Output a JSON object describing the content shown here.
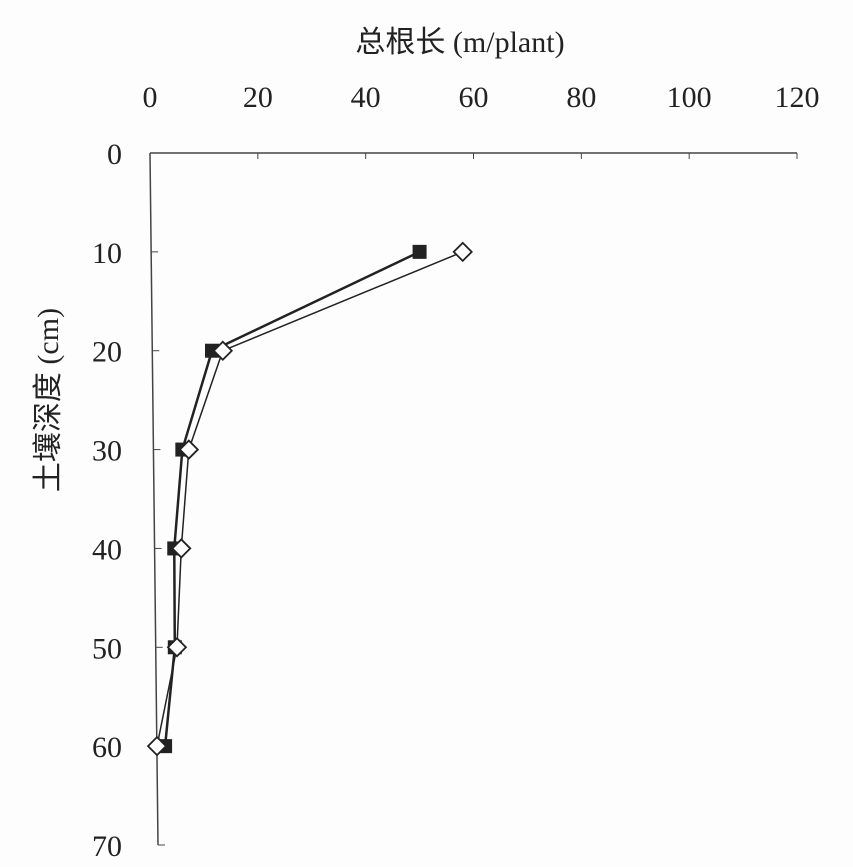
{
  "chart_data": {
    "type": "line",
    "orientation": "x-top, y-inverted",
    "xlabel": "总根长 (m/plant)",
    "ylabel": "土壤深度 (cm)",
    "xlim": [
      0,
      120
    ],
    "ylim": [
      0,
      70
    ],
    "x_ticks": [
      "0",
      "20",
      "40",
      "60",
      "80",
      "100",
      "120"
    ],
    "y_ticks": [
      "0",
      "10",
      "20",
      "30",
      "40",
      "50",
      "60",
      "70"
    ],
    "grid": false,
    "series": [
      {
        "marker": "filled-square",
        "color": "#222222",
        "depth": [
          10,
          20,
          30,
          40,
          50,
          60
        ],
        "length": [
          50,
          11.5,
          6,
          4.5,
          4.6,
          2.8
        ]
      },
      {
        "marker": "open-diamond",
        "color": "#222222",
        "depth": [
          10,
          20,
          30,
          40,
          50,
          60
        ],
        "length": [
          58,
          13.5,
          7.2,
          5.8,
          5,
          1.3
        ]
      }
    ]
  }
}
